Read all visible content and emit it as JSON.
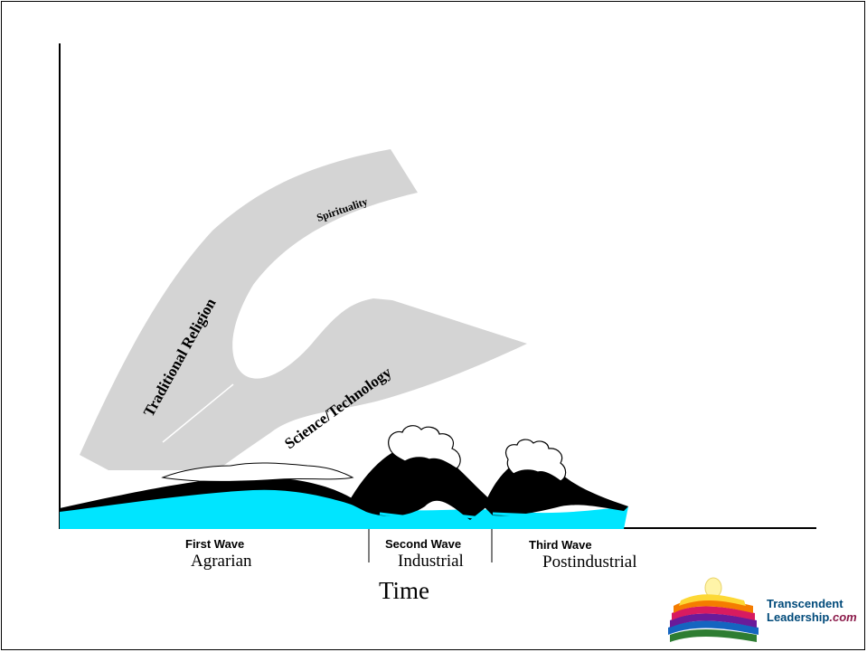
{
  "diagram": {
    "bands": {
      "spirituality": "Spirituality",
      "traditional_religion": "Traditional Religion",
      "science_technology": "Science/Technology"
    },
    "waves": [
      {
        "name": "First Wave",
        "era": "Agrarian"
      },
      {
        "name": "Second Wave",
        "era": "Industrial"
      },
      {
        "name": "Third Wave",
        "era": "Postindustrial"
      }
    ],
    "x_axis_label": "Time"
  },
  "logo": {
    "line1": "Transcendent",
    "line2_main": "Leadership",
    "line2_suffix": ".com"
  },
  "colors": {
    "band": "#d4d4d4",
    "water": "#00e5ff",
    "wave_dark": "#000000",
    "foam": "#ffffff"
  }
}
